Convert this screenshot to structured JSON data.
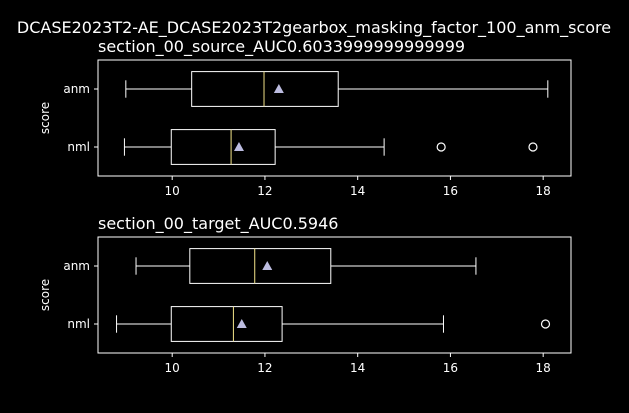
{
  "suptitle": "DCASE2023T2-AE_DCASE2023T2gearbox_masking_factor_100_anm_score",
  "colors": {
    "background": "#000000",
    "foreground": "#ffffff",
    "median": "#f5e58a",
    "mean_marker": "#bcbce0"
  },
  "chart_data": [
    {
      "type": "boxplot",
      "orientation": "horizontal",
      "title": "section_00_source_AUC0.6033999999999999",
      "ylabel": "score",
      "xlim": [
        8.4,
        18.6
      ],
      "xticks": [
        10,
        12,
        14,
        16,
        18
      ],
      "categories": [
        "anm",
        "nml"
      ],
      "boxes": [
        {
          "name": "anm",
          "whisker_low": 9.0,
          "q1": 10.42,
          "median": 11.98,
          "q3": 13.58,
          "whisker_high": 18.1,
          "mean": 12.3,
          "outliers": []
        },
        {
          "name": "nml",
          "whisker_low": 8.97,
          "q1": 9.98,
          "median": 11.27,
          "q3": 12.22,
          "whisker_high": 14.57,
          "mean": 11.44,
          "outliers": [
            15.8,
            17.78
          ]
        }
      ]
    },
    {
      "type": "boxplot",
      "orientation": "horizontal",
      "title": "section_00_target_AUC0.5946",
      "ylabel": "score",
      "xlim": [
        8.4,
        18.6
      ],
      "xticks": [
        10,
        12,
        14,
        16,
        18
      ],
      "categories": [
        "anm",
        "nml"
      ],
      "boxes": [
        {
          "name": "anm",
          "whisker_low": 9.22,
          "q1": 10.38,
          "median": 11.78,
          "q3": 13.42,
          "whisker_high": 16.55,
          "mean": 12.05,
          "outliers": []
        },
        {
          "name": "nml",
          "whisker_low": 8.8,
          "q1": 9.98,
          "median": 11.32,
          "q3": 12.37,
          "whisker_high": 15.85,
          "mean": 11.5,
          "outliers": [
            18.05
          ]
        }
      ]
    }
  ]
}
